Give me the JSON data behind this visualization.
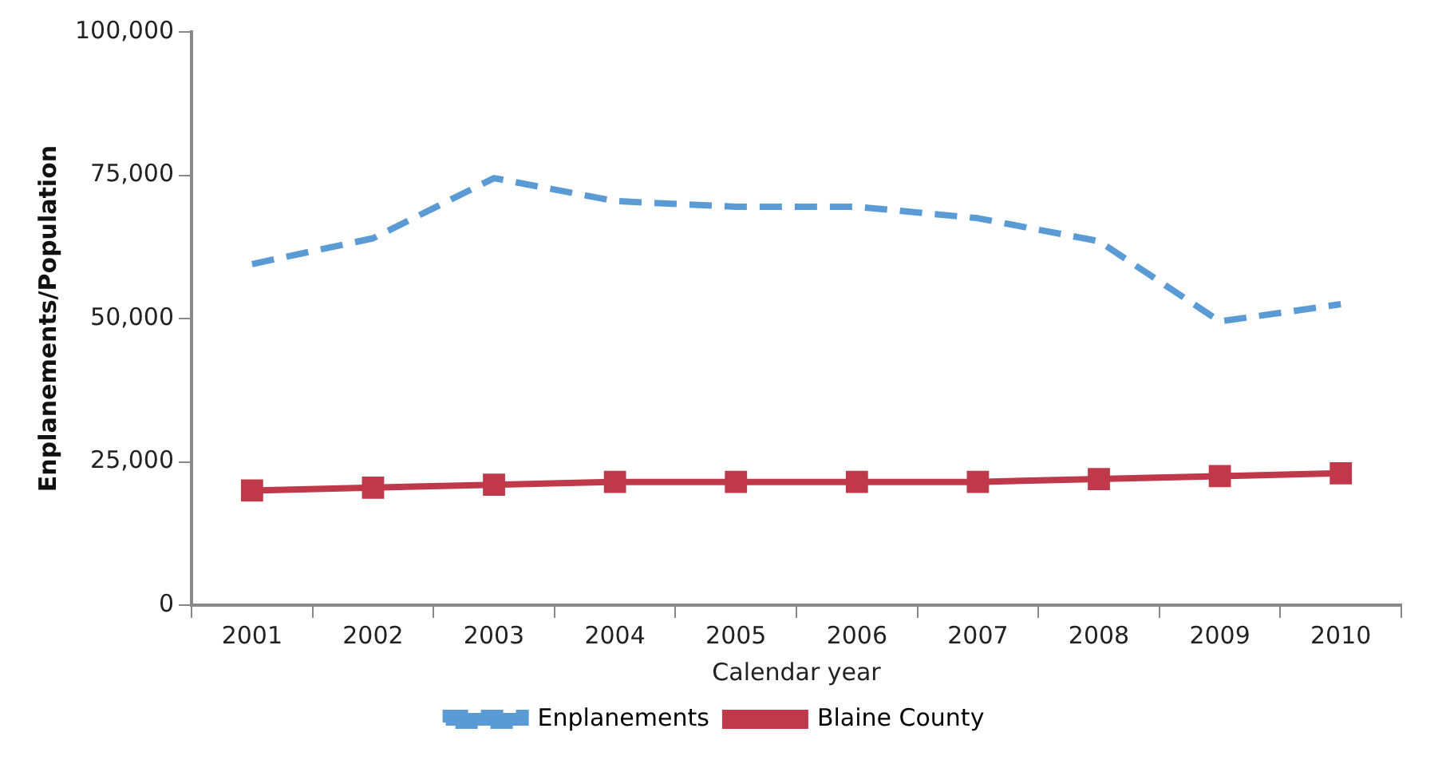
{
  "chart_data": {
    "type": "line",
    "xlabel": "Calendar year",
    "ylabel": "Enplanements/Population",
    "categories": [
      "2001",
      "2002",
      "2003",
      "2004",
      "2005",
      "2006",
      "2007",
      "2008",
      "2009",
      "2010"
    ],
    "series": [
      {
        "name": "Enplanements",
        "color": "#5b9bd5",
        "line_style": "dashed",
        "marker": "none",
        "values": [
          59500,
          64000,
          74500,
          70500,
          69500,
          69500,
          67500,
          63500,
          49500,
          52500
        ]
      },
      {
        "name": "Blaine County",
        "color": "#c0394b",
        "line_style": "solid",
        "marker": "square",
        "values": [
          20000,
          20500,
          21000,
          21500,
          21500,
          21500,
          21500,
          22000,
          22500,
          23000
        ]
      }
    ],
    "ylim": [
      0,
      100000
    ],
    "yticks": [
      {
        "value": 0,
        "label": "0"
      },
      {
        "value": 25000,
        "label": "25,000"
      },
      {
        "value": 50000,
        "label": "50,000"
      },
      {
        "value": 75000,
        "label": "75,000"
      },
      {
        "value": 100000,
        "label": "100,000"
      }
    ],
    "grid": false,
    "legend": "bottom"
  }
}
